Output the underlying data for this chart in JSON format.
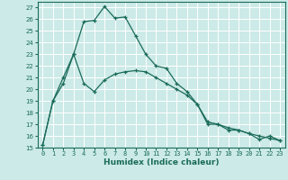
{
  "xlabel": "Humidex (Indice chaleur)",
  "ylabel": "",
  "bg_color": "#cceae7",
  "grid_color": "#ffffff",
  "line_color": "#1a6b5a",
  "xlim": [
    -0.5,
    23.5
  ],
  "ylim": [
    15,
    27.5
  ],
  "yticks": [
    15,
    16,
    17,
    18,
    19,
    20,
    21,
    22,
    23,
    24,
    25,
    26,
    27
  ],
  "xticks": [
    0,
    1,
    2,
    3,
    4,
    5,
    6,
    7,
    8,
    9,
    10,
    11,
    12,
    13,
    14,
    15,
    16,
    17,
    18,
    19,
    20,
    21,
    22,
    23
  ],
  "line1_x": [
    0,
    1,
    2,
    3,
    4,
    5,
    6,
    7,
    8,
    9,
    10,
    11,
    12,
    13,
    14,
    15,
    16,
    17,
    18,
    19,
    20,
    21,
    22,
    23
  ],
  "line1_y": [
    15.2,
    19.0,
    21.0,
    23.0,
    25.8,
    25.9,
    27.1,
    26.1,
    26.2,
    24.6,
    23.0,
    22.0,
    21.8,
    20.5,
    19.8,
    18.7,
    17.0,
    17.0,
    16.5,
    16.5,
    16.2,
    15.7,
    16.0,
    15.6
  ],
  "line2_x": [
    0,
    1,
    2,
    3,
    4,
    5,
    6,
    7,
    8,
    9,
    10,
    11,
    12,
    13,
    14,
    15,
    16,
    17,
    18,
    19,
    20,
    21,
    22,
    23
  ],
  "line2_y": [
    15.2,
    19.0,
    20.5,
    23.0,
    20.5,
    19.8,
    20.8,
    21.3,
    21.5,
    21.6,
    21.5,
    21.0,
    20.5,
    20.0,
    19.5,
    18.7,
    17.2,
    17.0,
    16.7,
    16.5,
    16.2,
    16.0,
    15.8,
    15.6
  ]
}
